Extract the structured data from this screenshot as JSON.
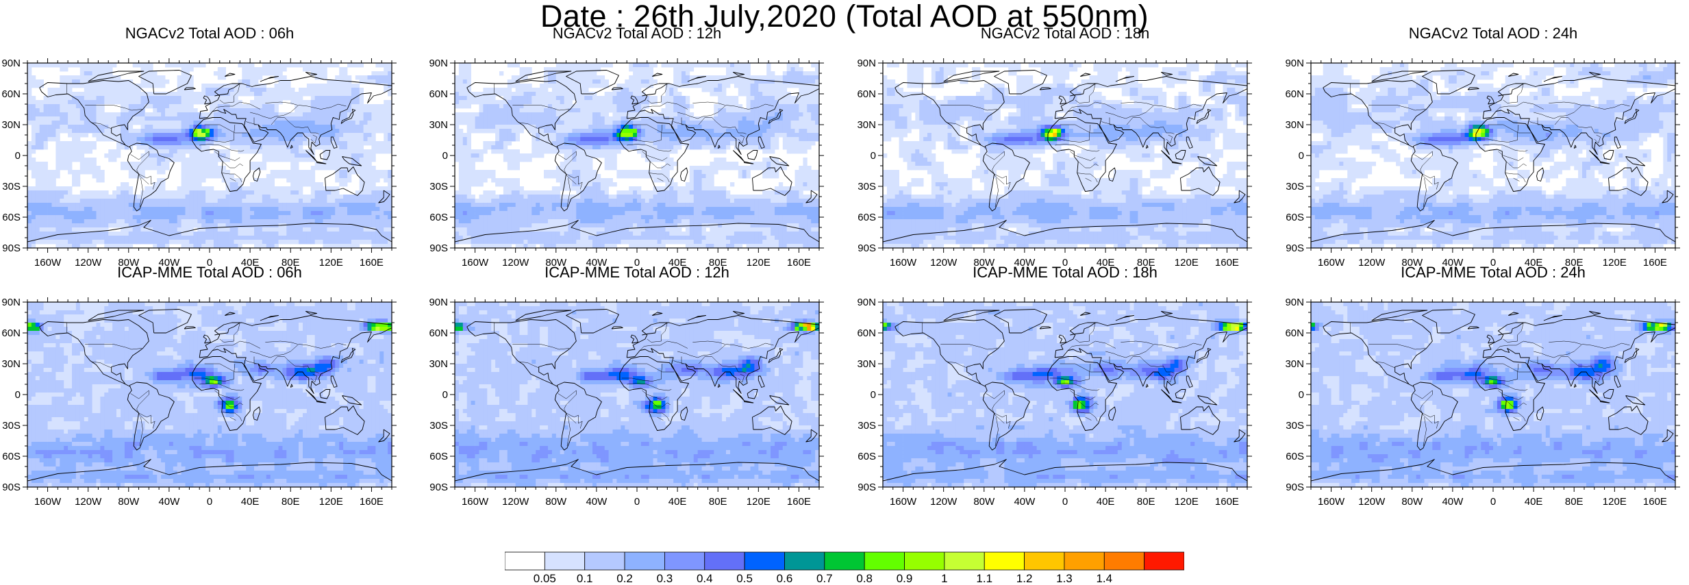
{
  "title": "Date : 26th July,2020 (Total AOD at 550nm)",
  "lat_labels": [
    "90N",
    "60N",
    "30N",
    "0",
    "30S",
    "60S",
    "90S"
  ],
  "lon_labels": [
    "160W",
    "120W",
    "80W",
    "40W",
    "0",
    "40E",
    "80E",
    "120E",
    "160E"
  ],
  "lon_values": [
    -160,
    -120,
    -80,
    -40,
    0,
    40,
    80,
    120,
    160
  ],
  "lat_values": [
    90,
    60,
    30,
    0,
    -30,
    -60,
    -90
  ],
  "panels": [
    {
      "row": 0,
      "col": 0,
      "model": "ngac",
      "title": "NGACv2 Total AOD : 06h"
    },
    {
      "row": 0,
      "col": 1,
      "model": "ngac",
      "title": "NGACv2 Total AOD : 12h"
    },
    {
      "row": 0,
      "col": 2,
      "model": "ngac",
      "title": "NGACv2 Total AOD : 18h"
    },
    {
      "row": 0,
      "col": 3,
      "model": "ngac",
      "title": "NGACv2 Total AOD : 24h"
    },
    {
      "row": 1,
      "col": 0,
      "model": "icap",
      "title": "ICAP-MME Total AOD : 06h"
    },
    {
      "row": 1,
      "col": 1,
      "model": "icap",
      "title": "ICAP-MME Total AOD : 12h"
    },
    {
      "row": 1,
      "col": 2,
      "model": "icap",
      "title": "ICAP-MME Total AOD : 18h"
    },
    {
      "row": 1,
      "col": 3,
      "model": "icap",
      "title": "ICAP-MME Total AOD : 24h"
    }
  ],
  "colorbar": {
    "colors": [
      "#ffffff",
      "#d6e2ff",
      "#b5c9ff",
      "#8eb2ff",
      "#7f96ff",
      "#6370f8",
      "#0063ff",
      "#009696",
      "#00c633",
      "#63ff00",
      "#96ff00",
      "#c6ff33",
      "#ffff00",
      "#ffc600",
      "#ffa000",
      "#ff7c00",
      "#ff1900"
    ],
    "labels": [
      "0.05",
      "0.1",
      "0.2",
      "0.3",
      "0.4",
      "0.5",
      "0.6",
      "0.7",
      "0.8",
      "0.9",
      "1",
      "1.1",
      "1.2",
      "1.3",
      "1.4"
    ]
  }
}
